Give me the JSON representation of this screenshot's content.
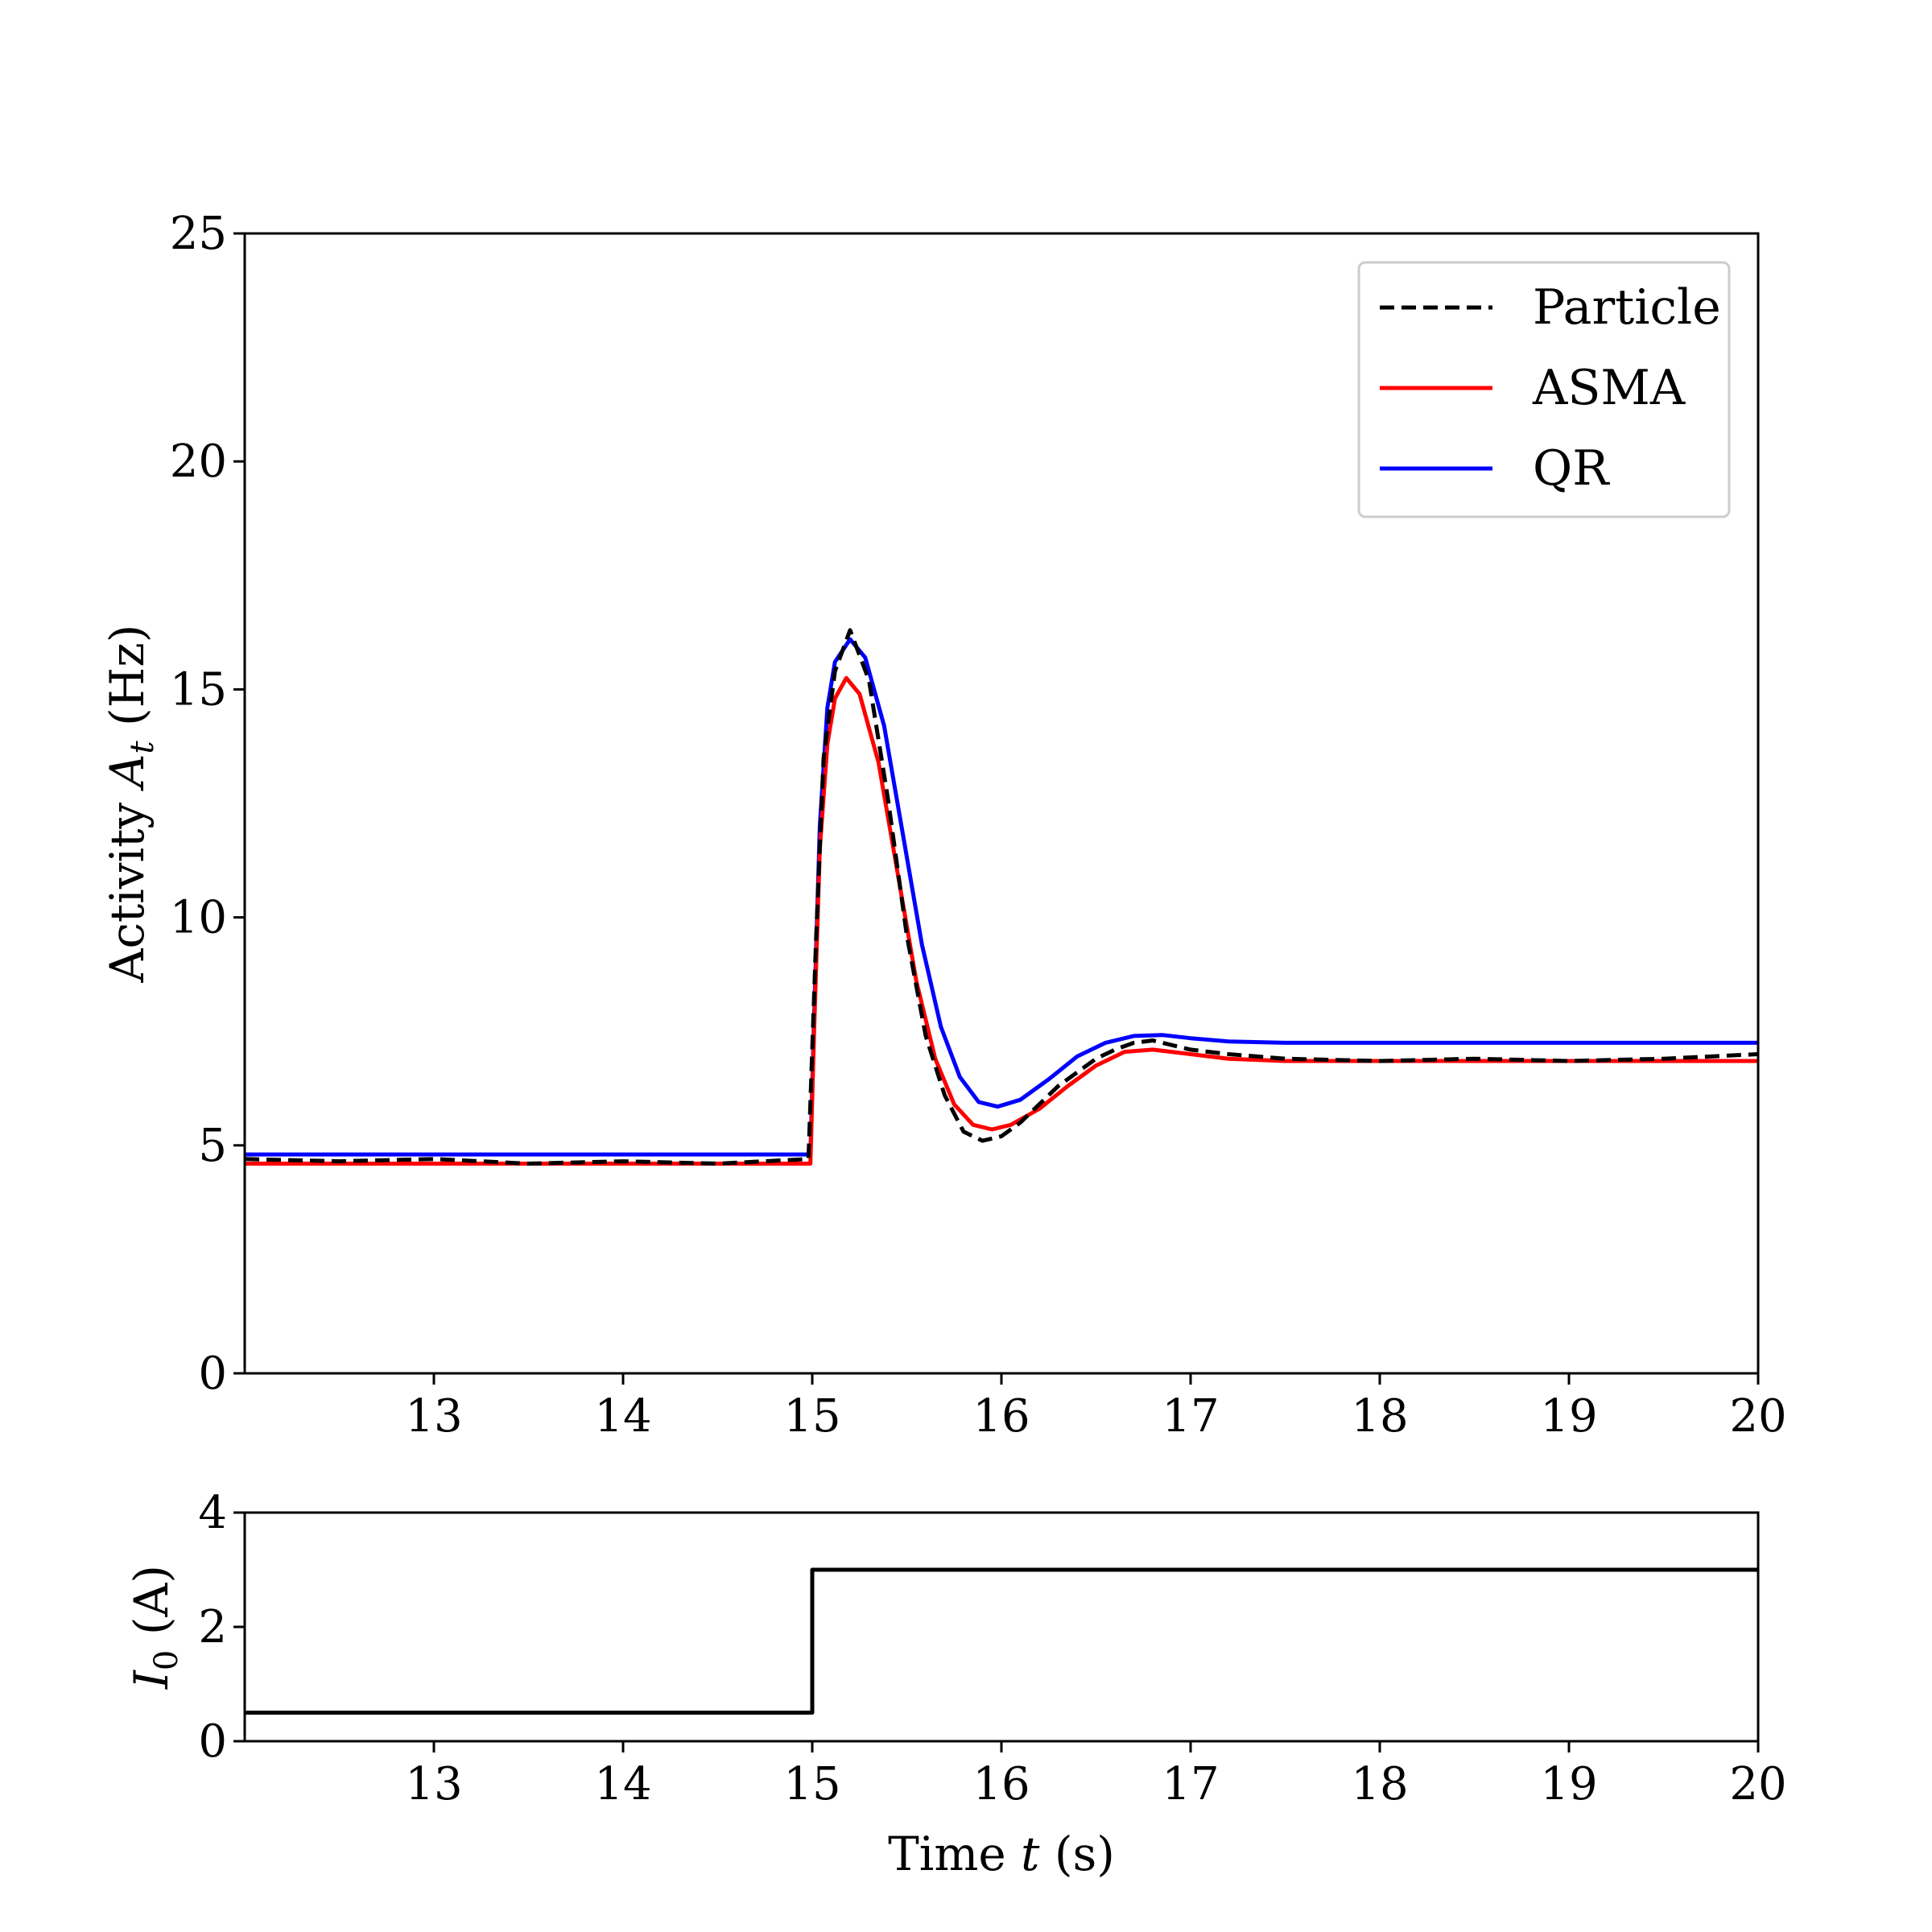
{
  "chart_data": [
    {
      "type": "line",
      "xlabel": "",
      "ylabel_prefix": "Activity ",
      "ylabel_symbol": "A",
      "ylabel_subscript": "t",
      "ylabel_suffix": " (Hz)",
      "xlim": [
        12.0,
        20.0
      ],
      "ylim": [
        0,
        25
      ],
      "xticks": [
        "13",
        "14",
        "15",
        "16",
        "17",
        "18",
        "19",
        "20"
      ],
      "yticks": [
        "0",
        "5",
        "10",
        "15",
        "20",
        "25"
      ],
      "grid": false,
      "legend_position": "top-right",
      "colors": {
        "particle": "#000000",
        "asma": "#ff0000",
        "qr": "#0000ff"
      },
      "series": [
        {
          "name": "Particle",
          "style": "dashed",
          "color": "#000000",
          "x": [
            12.0,
            12.5,
            13.0,
            13.5,
            14.0,
            14.5,
            14.98,
            15.02,
            15.06,
            15.12,
            15.2,
            15.3,
            15.4,
            15.5,
            15.6,
            15.7,
            15.8,
            15.9,
            16.0,
            16.1,
            16.2,
            16.3,
            16.4,
            16.5,
            16.6,
            16.7,
            16.8,
            17.0,
            17.2,
            17.5,
            18.0,
            18.5,
            19.0,
            19.5,
            20.0
          ],
          "y": [
            4.7,
            4.65,
            4.7,
            4.6,
            4.65,
            4.6,
            4.7,
            9.5,
            13.5,
            15.4,
            16.3,
            15.2,
            12.6,
            9.6,
            7.4,
            6.1,
            5.3,
            5.1,
            5.2,
            5.5,
            5.9,
            6.3,
            6.6,
            6.9,
            7.1,
            7.25,
            7.3,
            7.1,
            7.0,
            6.9,
            6.85,
            6.9,
            6.85,
            6.9,
            7.0
          ]
        },
        {
          "name": "ASMA",
          "style": "solid",
          "color": "#ff0000",
          "x": [
            12.0,
            13.0,
            14.0,
            14.99,
            15.01,
            15.04,
            15.08,
            15.12,
            15.18,
            15.25,
            15.35,
            15.45,
            15.55,
            15.65,
            15.75,
            15.85,
            15.95,
            16.05,
            16.2,
            16.35,
            16.5,
            16.65,
            16.8,
            17.0,
            17.2,
            17.5,
            18.0,
            18.5,
            19.0,
            19.5,
            20.0
          ],
          "y": [
            4.6,
            4.6,
            4.6,
            4.6,
            7.5,
            11.5,
            13.8,
            14.8,
            15.25,
            14.9,
            13.4,
            11.0,
            8.6,
            6.9,
            5.9,
            5.45,
            5.35,
            5.45,
            5.8,
            6.3,
            6.75,
            7.05,
            7.1,
            7.0,
            6.9,
            6.85,
            6.85,
            6.85,
            6.85,
            6.85,
            6.85
          ]
        },
        {
          "name": "QR",
          "style": "solid",
          "color": "#0000ff",
          "x": [
            12.0,
            13.0,
            14.0,
            14.99,
            15.01,
            15.04,
            15.08,
            15.12,
            15.2,
            15.28,
            15.38,
            15.48,
            15.58,
            15.68,
            15.78,
            15.88,
            15.98,
            16.1,
            16.25,
            16.4,
            16.55,
            16.7,
            16.85,
            17.0,
            17.2,
            17.5,
            18.0,
            18.5,
            19.0,
            19.5,
            20.0
          ],
          "y": [
            4.8,
            4.8,
            4.8,
            4.8,
            7.8,
            12.0,
            14.6,
            15.6,
            16.1,
            15.7,
            14.2,
            11.8,
            9.4,
            7.6,
            6.5,
            5.95,
            5.85,
            6.0,
            6.45,
            6.95,
            7.25,
            7.4,
            7.42,
            7.35,
            7.28,
            7.25,
            7.25,
            7.25,
            7.25,
            7.25,
            7.25
          ]
        }
      ]
    },
    {
      "type": "line",
      "xlabel_prefix": "Time ",
      "xlabel_symbol": "t",
      "xlabel_suffix": " (s)",
      "ylabel_symbol": "I",
      "ylabel_subscript": "0",
      "ylabel_suffix": " (A)",
      "xlim": [
        12.0,
        20.0
      ],
      "ylim": [
        0,
        4
      ],
      "xticks": [
        "13",
        "14",
        "15",
        "16",
        "17",
        "18",
        "19",
        "20"
      ],
      "yticks": [
        "0",
        "2",
        "4"
      ],
      "grid": false,
      "series": [
        {
          "style": "step",
          "color": "#000000",
          "x": [
            12.0,
            15.0,
            15.0,
            20.0
          ],
          "y": [
            0.5,
            0.5,
            3.0,
            3.0
          ]
        }
      ]
    }
  ]
}
